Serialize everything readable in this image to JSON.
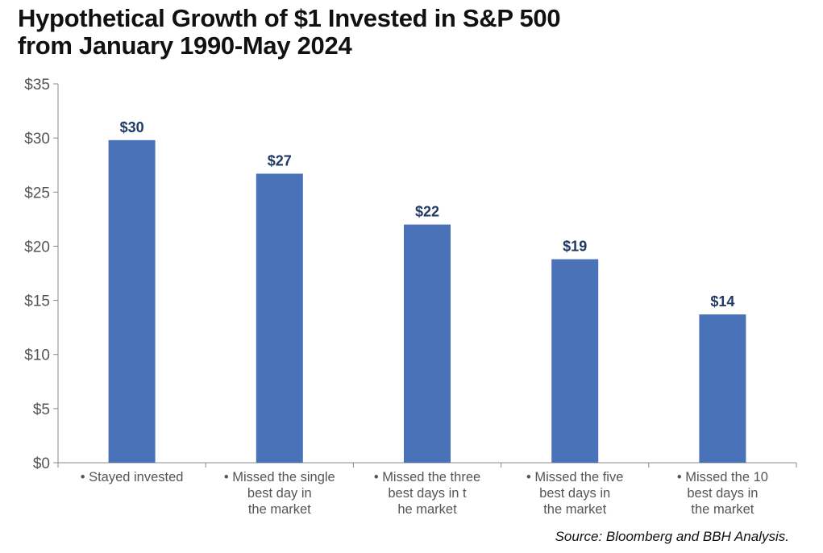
{
  "chart_data": {
    "type": "bar",
    "title_lines": [
      "Hypothetical Growth of $1 Invested in S&P 500",
      "from January 1990-May 2024"
    ],
    "categories": [
      [
        "Stayed invested"
      ],
      [
        "Missed the single",
        "best day in",
        "the market"
      ],
      [
        "Missed the three",
        "best days in t",
        "he market"
      ],
      [
        "Missed the five",
        "best days in",
        "the market"
      ],
      [
        "Missed the 10",
        "best days in",
        "the market"
      ]
    ],
    "values": [
      29.8,
      26.7,
      22.0,
      18.8,
      13.7
    ],
    "data_labels": [
      "$30",
      "$27",
      "$22",
      "$19",
      "$14"
    ],
    "y_ticks": [
      "$0",
      "$5",
      "$10",
      "$15",
      "$20",
      "$25",
      "$30",
      "$35"
    ],
    "y_tick_values": [
      0,
      5,
      10,
      15,
      20,
      25,
      30,
      35
    ],
    "ylim": [
      0,
      35
    ],
    "xlabel": "",
    "ylabel": "",
    "grid": false,
    "legend": "none",
    "colors": {
      "bar": "#4a72b8",
      "data_label": "#1f3a63",
      "axis": "#888888",
      "tick_text": "#555555"
    }
  },
  "source": "Source: Bloomberg and BBH Analysis."
}
